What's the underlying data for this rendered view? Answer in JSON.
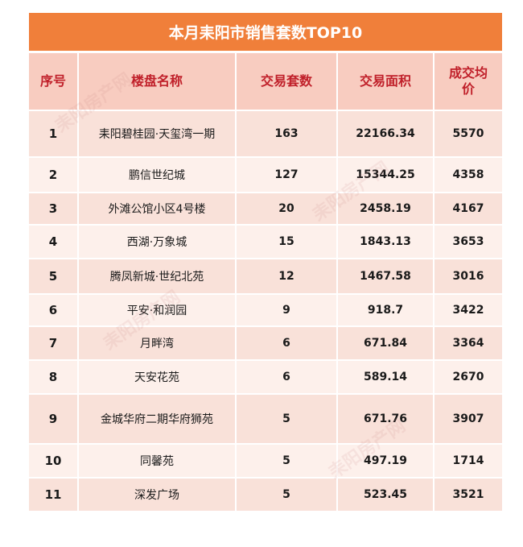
{
  "title": "本月耒阳市销售套数TOP10",
  "headers": [
    "序号",
    "楼盘名称",
    "交易套数",
    "交易面积",
    "成交均价"
  ],
  "rows": [
    [
      "1",
      "耒阳碧桂园·天玺湾一期",
      "163",
      "22166.34",
      "5570"
    ],
    [
      "2",
      "鹏信世纪城",
      "127",
      "15344.25",
      "4358"
    ],
    [
      "3",
      "外滩公馆小区4号楼",
      "20",
      "2458.19",
      "4167"
    ],
    [
      "4",
      "西湖·万象城",
      "15",
      "1843.13",
      "3653"
    ],
    [
      "5",
      "腾凤新城·世纪北苑",
      "12",
      "1467.58",
      "3016"
    ],
    [
      "6",
      "平安·和润园",
      "9",
      "918.7",
      "3422"
    ],
    [
      "7",
      "月畔湾",
      "6",
      "671.84",
      "3364"
    ],
    [
      "8",
      "天安花苑",
      "6",
      "589.14",
      "2670"
    ],
    [
      "9",
      "金城华府二期华府狮苑",
      "5",
      "671.76",
      "3907"
    ],
    [
      "10",
      "同馨苑",
      "5",
      "497.19",
      "1714"
    ],
    [
      "11",
      "深发广场",
      "5",
      "523.45",
      "3521"
    ]
  ],
  "watermark": "耒阳房产网"
}
